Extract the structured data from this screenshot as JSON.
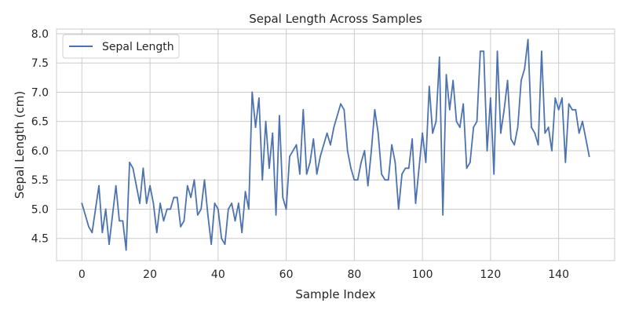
{
  "chart_data": {
    "type": "line",
    "title": "Sepal Length Across Samples",
    "xlabel": "Sample Index",
    "ylabel": "Sepal Length (cm)",
    "xlim": [
      -7.45,
      156.45
    ],
    "ylim": [
      4.12,
      8.08
    ],
    "xticks": [
      0,
      20,
      40,
      60,
      80,
      100,
      120,
      140
    ],
    "yticks": [
      4.5,
      5.0,
      5.5,
      6.0,
      6.5,
      7.0,
      7.5,
      8.0
    ],
    "xtick_labels": [
      "0",
      "20",
      "40",
      "60",
      "80",
      "100",
      "120",
      "140"
    ],
    "ytick_labels": [
      "4.5",
      "5.0",
      "5.5",
      "6.0",
      "6.5",
      "7.0",
      "7.5",
      "8.0"
    ],
    "grid": true,
    "legend_position": "upper-left",
    "series": [
      {
        "name": "Sepal Length",
        "color": "#4c72b0",
        "x": [
          0,
          1,
          2,
          3,
          4,
          5,
          6,
          7,
          8,
          9,
          10,
          11,
          12,
          13,
          14,
          15,
          16,
          17,
          18,
          19,
          20,
          21,
          22,
          23,
          24,
          25,
          26,
          27,
          28,
          29,
          30,
          31,
          32,
          33,
          34,
          35,
          36,
          37,
          38,
          39,
          40,
          41,
          42,
          43,
          44,
          45,
          46,
          47,
          48,
          49,
          50,
          51,
          52,
          53,
          54,
          55,
          56,
          57,
          58,
          59,
          60,
          61,
          62,
          63,
          64,
          65,
          66,
          67,
          68,
          69,
          70,
          71,
          72,
          73,
          74,
          75,
          76,
          77,
          78,
          79,
          80,
          81,
          82,
          83,
          84,
          85,
          86,
          87,
          88,
          89,
          90,
          91,
          92,
          93,
          94,
          95,
          96,
          97,
          98,
          99,
          100,
          101,
          102,
          103,
          104,
          105,
          106,
          107,
          108,
          109,
          110,
          111,
          112,
          113,
          114,
          115,
          116,
          117,
          118,
          119,
          120,
          121,
          122,
          123,
          124,
          125,
          126,
          127,
          128,
          129,
          130,
          131,
          132,
          133,
          134,
          135,
          136,
          137,
          138,
          139,
          140,
          141,
          142,
          143,
          144,
          145,
          146,
          147,
          148,
          149
        ],
        "values": [
          5.1,
          4.9,
          4.7,
          4.6,
          5.0,
          5.4,
          4.6,
          5.0,
          4.4,
          4.9,
          5.4,
          4.8,
          4.8,
          4.3,
          5.8,
          5.7,
          5.4,
          5.1,
          5.7,
          5.1,
          5.4,
          5.1,
          4.6,
          5.1,
          4.8,
          5.0,
          5.0,
          5.2,
          5.2,
          4.7,
          4.8,
          5.4,
          5.2,
          5.5,
          4.9,
          5.0,
          5.5,
          4.9,
          4.4,
          5.1,
          5.0,
          4.5,
          4.4,
          5.0,
          5.1,
          4.8,
          5.1,
          4.6,
          5.3,
          5.0,
          7.0,
          6.4,
          6.9,
          5.5,
          6.5,
          5.7,
          6.3,
          4.9,
          6.6,
          5.2,
          5.0,
          5.9,
          6.0,
          6.1,
          5.6,
          6.7,
          5.6,
          5.8,
          6.2,
          5.6,
          5.9,
          6.1,
          6.3,
          6.1,
          6.4,
          6.6,
          6.8,
          6.7,
          6.0,
          5.7,
          5.5,
          5.5,
          5.8,
          6.0,
          5.4,
          6.0,
          6.7,
          6.3,
          5.6,
          5.5,
          5.5,
          6.1,
          5.8,
          5.0,
          5.6,
          5.7,
          5.7,
          6.2,
          5.1,
          5.7,
          6.3,
          5.8,
          7.1,
          6.3,
          6.5,
          7.6,
          4.9,
          7.3,
          6.7,
          7.2,
          6.5,
          6.4,
          6.8,
          5.7,
          5.8,
          6.4,
          6.5,
          7.7,
          7.7,
          6.0,
          6.9,
          5.6,
          7.7,
          6.3,
          6.7,
          7.2,
          6.2,
          6.1,
          6.4,
          7.2,
          7.4,
          7.9,
          6.4,
          6.3,
          6.1,
          7.7,
          6.3,
          6.4,
          6.0,
          6.9,
          6.7,
          6.9,
          5.8,
          6.8,
          6.7,
          6.7,
          6.3,
          6.5,
          6.2,
          5.9
        ]
      }
    ]
  }
}
